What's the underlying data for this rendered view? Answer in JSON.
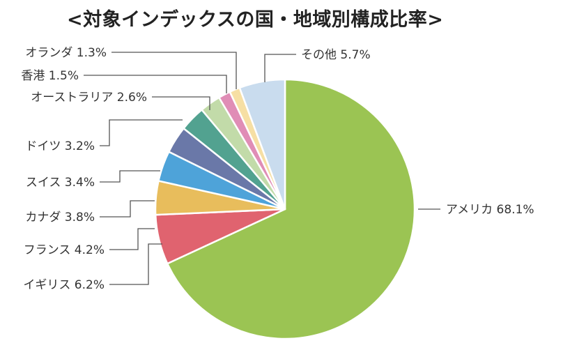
{
  "chart_data": {
    "type": "pie",
    "title": "<対象インデックスの国・地域別構成比率>",
    "unit": "%",
    "slices": [
      {
        "label": "アメリカ",
        "value": 68.1,
        "value_text": "68.1%",
        "color": "#9bc453"
      },
      {
        "label": "イギリス",
        "value": 6.2,
        "value_text": "6.2%",
        "color": "#e0636f"
      },
      {
        "label": "フランス",
        "value": 4.2,
        "value_text": "4.2%",
        "color": "#e8bd5c"
      },
      {
        "label": "カナダ",
        "value": 3.8,
        "value_text": "3.8%",
        "color": "#4ea3d9"
      },
      {
        "label": "スイス",
        "value": 3.4,
        "value_text": "3.4%",
        "color": "#6a78a8"
      },
      {
        "label": "ドイツ",
        "value": 3.2,
        "value_text": "3.2%",
        "color": "#52a290"
      },
      {
        "label": "オーストラリア",
        "value": 2.6,
        "value_text": "2.6%",
        "color": "#c2dba9"
      },
      {
        "label": "香港",
        "value": 1.5,
        "value_text": "1.5%",
        "color": "#e08db6"
      },
      {
        "label": "オランダ",
        "value": 1.3,
        "value_text": "1.3%",
        "color": "#f6dfa4"
      },
      {
        "label": "その他",
        "value": 5.7,
        "value_text": "5.7%",
        "color": "#c9dcee"
      }
    ]
  }
}
